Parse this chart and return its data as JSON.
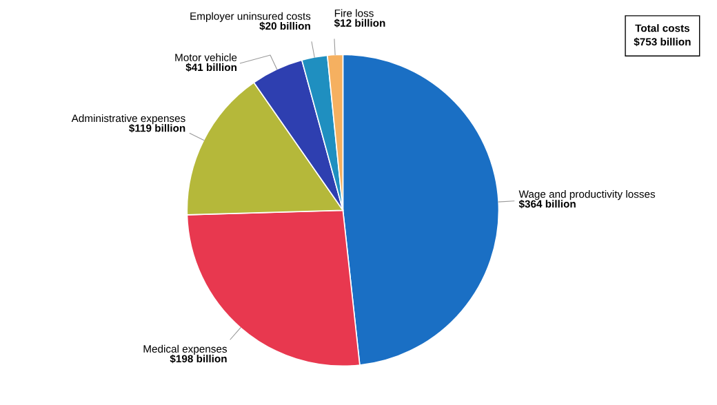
{
  "chart_data": {
    "type": "pie",
    "categories": [
      "Wage and productivity losses",
      "Medical expenses",
      "Administrative expenses",
      "Motor vehicle",
      "Employer uninsured costs",
      "Fire loss"
    ],
    "values": [
      364,
      198,
      119,
      41,
      20,
      12
    ],
    "value_labels": [
      "$364 billion",
      "$198 billion",
      "$119 billion",
      "$41 billion",
      "$20 billion",
      "$12 billion"
    ],
    "colors": [
      "#1a6fc4",
      "#e8384f",
      "#b5b83a",
      "#2e3fb0",
      "#1f8fc0",
      "#f5b060"
    ],
    "annotations": [
      "Total costs",
      "$753 billion"
    ]
  }
}
